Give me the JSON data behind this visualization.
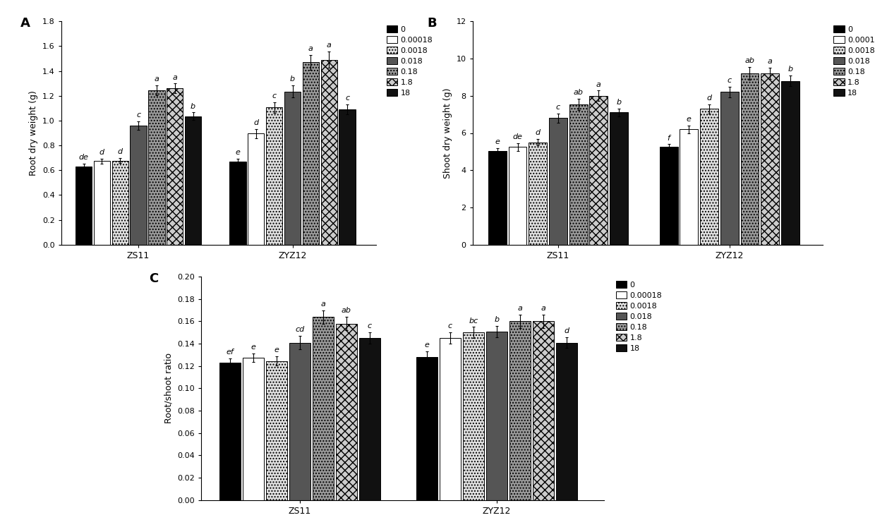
{
  "panel_A": {
    "title": "A",
    "ylabel": "Root dry weight (g)",
    "ylim": [
      0,
      1.8
    ],
    "yticks": [
      0,
      0.2,
      0.4,
      0.6,
      0.8,
      1.0,
      1.2,
      1.4,
      1.6,
      1.8
    ],
    "groups": [
      "ZS11",
      "ZYZ12"
    ],
    "ZS11": {
      "values": [
        0.63,
        0.675,
        0.678,
        0.96,
        1.245,
        1.26,
        1.035
      ],
      "errors": [
        0.025,
        0.02,
        0.022,
        0.035,
        0.04,
        0.038,
        0.03
      ],
      "labels": [
        "de",
        "d",
        "d",
        "c",
        "a",
        "a",
        "b"
      ]
    },
    "ZYZ12": {
      "values": [
        0.67,
        0.895,
        1.105,
        1.235,
        1.47,
        1.49,
        1.09
      ],
      "errors": [
        0.025,
        0.035,
        0.045,
        0.05,
        0.06,
        0.065,
        0.04
      ],
      "labels": [
        "e",
        "d",
        "c",
        "b",
        "a",
        "a",
        "c"
      ]
    }
  },
  "panel_B": {
    "title": "B",
    "ylabel": "Shoot dry weight (g)",
    "ylim": [
      0,
      12
    ],
    "yticks": [
      0,
      2,
      4,
      6,
      8,
      10,
      12
    ],
    "groups": [
      "ZS11",
      "ZYZ12"
    ],
    "ZS11": {
      "values": [
        5.05,
        5.25,
        5.5,
        6.8,
        7.55,
        8.0,
        7.1
      ],
      "errors": [
        0.15,
        0.2,
        0.18,
        0.25,
        0.3,
        0.28,
        0.22
      ],
      "labels": [
        "e",
        "de",
        "d",
        "c",
        "ab",
        "a",
        "b"
      ]
    },
    "ZYZ12": {
      "values": [
        5.25,
        6.2,
        7.3,
        8.2,
        9.2,
        9.2,
        8.8
      ],
      "errors": [
        0.15,
        0.2,
        0.25,
        0.3,
        0.35,
        0.32,
        0.28
      ],
      "labels": [
        "f",
        "e",
        "d",
        "c",
        "ab",
        "a",
        "b"
      ]
    }
  },
  "panel_C": {
    "title": "C",
    "ylabel": "Root/shoot ratio",
    "ylim": [
      0,
      0.2
    ],
    "yticks": [
      0,
      0.02,
      0.04,
      0.06,
      0.08,
      0.1,
      0.12,
      0.14,
      0.16,
      0.18,
      0.2
    ],
    "groups": [
      "ZS11",
      "ZYZ12"
    ],
    "ZS11": {
      "values": [
        0.123,
        0.1275,
        0.1245,
        0.141,
        0.164,
        0.158,
        0.145
      ],
      "errors": [
        0.004,
        0.004,
        0.004,
        0.006,
        0.006,
        0.006,
        0.005
      ],
      "labels": [
        "ef",
        "e",
        "e",
        "cd",
        "a",
        "ab",
        "c"
      ]
    },
    "ZYZ12": {
      "values": [
        0.128,
        0.145,
        0.15,
        0.151,
        0.16,
        0.16,
        0.141
      ],
      "errors": [
        0.005,
        0.005,
        0.005,
        0.005,
        0.006,
        0.006,
        0.005
      ],
      "labels": [
        "e",
        "c",
        "bc",
        "b",
        "a",
        "a",
        "d"
      ]
    }
  },
  "legend_labels": [
    "0",
    "0.00018",
    "0.0018",
    "0.018",
    "0.18",
    "1.8",
    "18"
  ],
  "background_color": "#ffffff",
  "label_fontsize": 8,
  "axis_label_fontsize": 9,
  "tick_fontsize": 8,
  "legend_fontsize": 8
}
